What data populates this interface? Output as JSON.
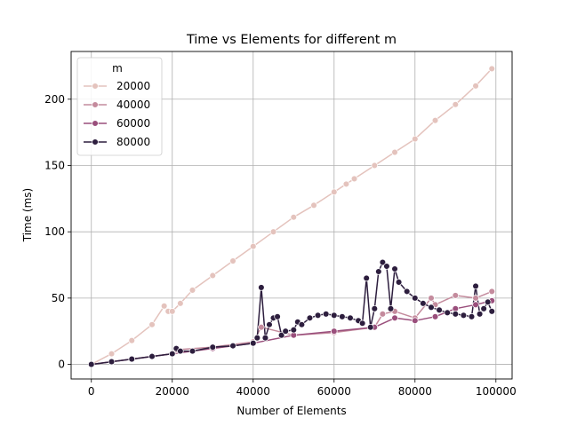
{
  "chart_data": {
    "type": "line",
    "title": "Time vs Elements for different m",
    "xlabel": "Number of Elements",
    "ylabel": "Time (ms)",
    "xlim": [
      -5000,
      104000
    ],
    "ylim": [
      -11,
      236
    ],
    "xticks": [
      0,
      20000,
      40000,
      60000,
      80000,
      100000
    ],
    "xtick_labels": [
      "0",
      "20000",
      "40000",
      "60000",
      "80000",
      "100000"
    ],
    "yticks": [
      0,
      50,
      100,
      150,
      200
    ],
    "ytick_labels": [
      "0",
      "50",
      "100",
      "150",
      "200"
    ],
    "grid": true,
    "legend": {
      "title": "m",
      "placement": "top-left",
      "entries": [
        "20000",
        "40000",
        "60000",
        "80000"
      ]
    },
    "marker": "circle",
    "series": [
      {
        "name": "20000",
        "color": "#e4c3bd",
        "x": [
          0,
          5000,
          10000,
          15000,
          18000,
          19000,
          20000,
          22000,
          25000,
          30000,
          35000,
          40000,
          45000,
          50000,
          55000,
          60000,
          63000,
          65000,
          70000,
          75000,
          80000,
          85000,
          90000,
          95000,
          99000
        ],
        "y": [
          0,
          8,
          18,
          30,
          44,
          40,
          40,
          46,
          56,
          67,
          78,
          89,
          100,
          111,
          120,
          130,
          136,
          140,
          150,
          160,
          170,
          184,
          196,
          210,
          223
        ]
      },
      {
        "name": "40000",
        "color": "#c48b9d",
        "x": [
          0,
          10000,
          20000,
          21000,
          30000,
          40000,
          42000,
          50000,
          60000,
          70000,
          72000,
          75000,
          80000,
          84000,
          85000,
          90000,
          95000,
          99000
        ],
        "y": [
          0,
          4,
          8,
          11,
          13,
          17,
          28,
          22,
          24,
          28,
          38,
          40,
          35,
          50,
          45,
          52,
          50,
          55
        ]
      },
      {
        "name": "60000",
        "color": "#9a4f7c",
        "x": [
          0,
          10000,
          20000,
          30000,
          40000,
          50000,
          60000,
          70000,
          75000,
          80000,
          85000,
          90000,
          95000,
          99000
        ],
        "y": [
          0,
          4,
          8,
          12,
          16,
          22,
          25,
          28,
          35,
          33,
          36,
          42,
          45,
          48
        ]
      },
      {
        "name": "80000",
        "color": "#2d1e3e",
        "x": [
          0,
          5000,
          10000,
          15000,
          20000,
          21000,
          22000,
          25000,
          30000,
          35000,
          40000,
          41000,
          42000,
          43000,
          44000,
          45000,
          46000,
          47000,
          48000,
          50000,
          51000,
          52000,
          54000,
          56000,
          58000,
          60000,
          62000,
          64000,
          66000,
          67000,
          68000,
          69000,
          70000,
          71000,
          72000,
          73000,
          74000,
          75000,
          76000,
          78000,
          80000,
          82000,
          84000,
          86000,
          88000,
          90000,
          92000,
          94000,
          95000,
          96000,
          97000,
          98000,
          99000
        ],
        "y": [
          0,
          2,
          4,
          6,
          8,
          12,
          10,
          10,
          13,
          14,
          16,
          20,
          58,
          20,
          30,
          35,
          36,
          22,
          25,
          26,
          32,
          30,
          35,
          37,
          38,
          37,
          36,
          35,
          33,
          31,
          65,
          28,
          42,
          70,
          77,
          74,
          42,
          72,
          62,
          55,
          50,
          46,
          43,
          41,
          39,
          38,
          37,
          36,
          59,
          38,
          42,
          47,
          40
        ]
      }
    ]
  }
}
